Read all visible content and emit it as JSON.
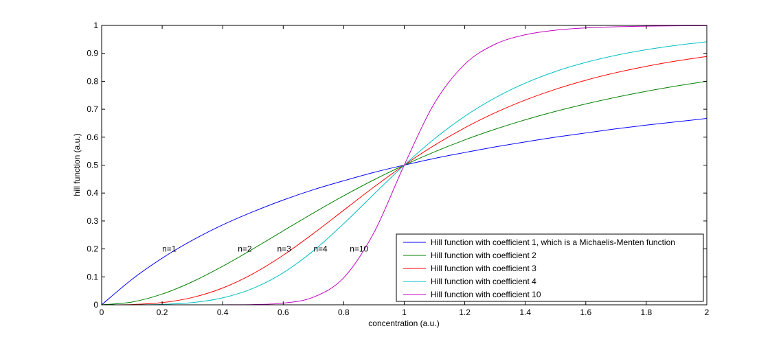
{
  "chart_data": {
    "type": "line",
    "title": "",
    "xlabel": "concentration (a.u.)",
    "ylabel": "hill function (a.u.)",
    "xlim": [
      0,
      2
    ],
    "ylim": [
      0,
      1
    ],
    "xticks": [
      "0",
      "0.2",
      "0.4",
      "0.6",
      "0.8",
      "1",
      "1.2",
      "1.4",
      "1.6",
      "1.8",
      "2"
    ],
    "yticks": [
      "0",
      "0.1",
      "0.2",
      "0.3",
      "0.4",
      "0.5",
      "0.6",
      "0.7",
      "0.8",
      "0.9",
      "1"
    ],
    "grid": false,
    "legend_position": "bottom-right",
    "x": [
      0,
      0.1,
      0.2,
      0.3,
      0.4,
      0.5,
      0.6,
      0.7,
      0.8,
      0.9,
      1.0,
      1.1,
      1.2,
      1.3,
      1.4,
      1.5,
      1.6,
      1.7,
      1.8,
      1.9,
      2.0
    ],
    "series": [
      {
        "name": "Hill function with coefficient 1, which is a Michaelis-Menten function",
        "color": "#0000ff",
        "values": [
          0,
          0.091,
          0.167,
          0.231,
          0.286,
          0.333,
          0.375,
          0.412,
          0.444,
          0.474,
          0.5,
          0.524,
          0.545,
          0.565,
          0.583,
          0.6,
          0.615,
          0.63,
          0.643,
          0.655,
          0.667
        ]
      },
      {
        "name": "Hill function with coefficient 2",
        "color": "#008000",
        "values": [
          0,
          0.0099,
          0.0385,
          0.0826,
          0.1379,
          0.2,
          0.2647,
          0.3289,
          0.3902,
          0.4475,
          0.5,
          0.5475,
          0.5902,
          0.6283,
          0.6622,
          0.6923,
          0.719,
          0.7429,
          0.7642,
          0.7831,
          0.8
        ]
      },
      {
        "name": "Hill function with coefficient 3",
        "color": "#ff0000",
        "values": [
          0,
          0.001,
          0.0079,
          0.0263,
          0.0602,
          0.1111,
          0.1775,
          0.2554,
          0.3386,
          0.4216,
          0.5,
          0.571,
          0.6334,
          0.6872,
          0.7329,
          0.7714,
          0.8038,
          0.8309,
          0.8536,
          0.8728,
          0.8889
        ]
      },
      {
        "name": "Hill function with coefficient 4",
        "color": "#00bfbf",
        "values": [
          0,
          0.0001,
          0.0016,
          0.008,
          0.0249,
          0.0588,
          0.1148,
          0.1936,
          0.2906,
          0.3963,
          0.5,
          0.5942,
          0.6747,
          0.7407,
          0.7935,
          0.8351,
          0.8676,
          0.893,
          0.913,
          0.9287,
          0.9412
        ]
      },
      {
        "name": "Hill function with coefficient 10",
        "color": "#bf00bf",
        "values": [
          0,
          0,
          0,
          0,
          0.0001,
          0.001,
          0.006,
          0.0274,
          0.0969,
          0.2586,
          0.5,
          0.7217,
          0.861,
          0.9324,
          0.9666,
          0.9829,
          0.9909,
          0.995,
          0.9972,
          0.9984,
          0.999
        ]
      }
    ],
    "annotations": [
      {
        "text": "n=1",
        "x": 0.2,
        "y": 0.2
      },
      {
        "text": "n=2",
        "x": 0.45,
        "y": 0.2
      },
      {
        "text": "n=3",
        "x": 0.58,
        "y": 0.2
      },
      {
        "text": "n=4",
        "x": 0.7,
        "y": 0.2
      },
      {
        "text": "n=10",
        "x": 0.82,
        "y": 0.2
      }
    ]
  }
}
